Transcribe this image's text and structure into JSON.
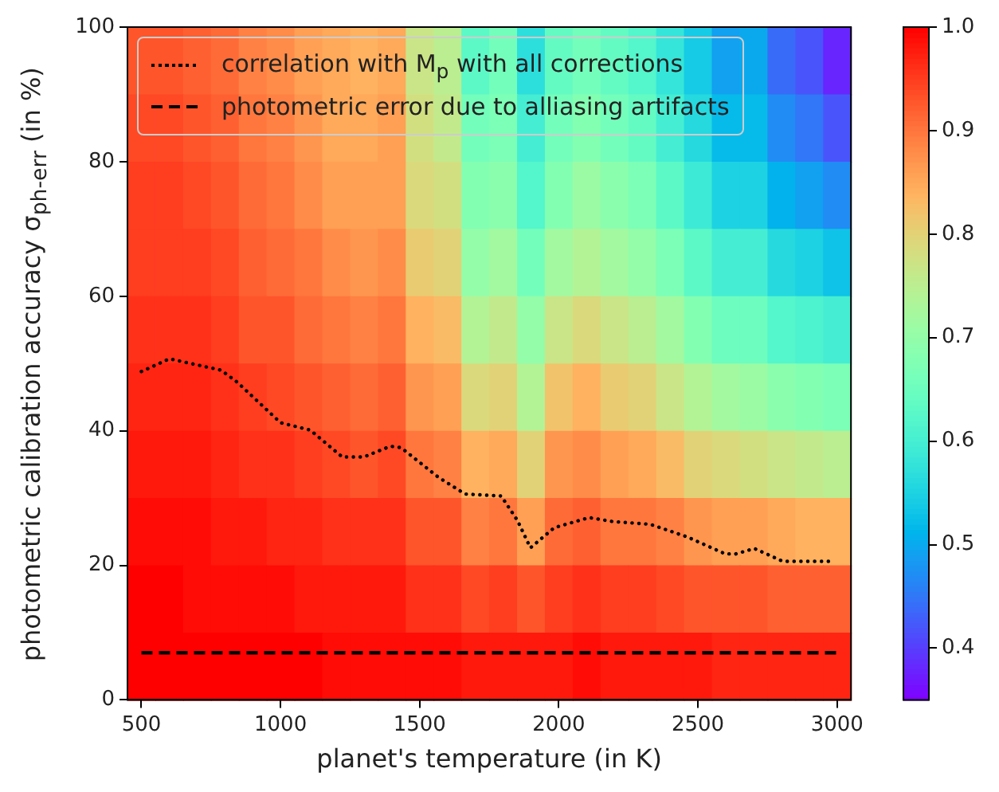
{
  "chart_data": [
    {
      "type": "heatmap",
      "categories": [
        null,
        null,
        null,
        null,
        null,
        null,
        null,
        null,
        null,
        null,
        null,
        null,
        null,
        null,
        null,
        null,
        null,
        null,
        null,
        null,
        null,
        null,
        null,
        null,
        null,
        null
      ],
      "y_categories": [
        null,
        null,
        null,
        null,
        null,
        null,
        null,
        null,
        null,
        null
      ],
      "cells": [
        [
          0.93,
          0.93,
          0.92,
          0.91,
          0.89,
          0.88,
          0.86,
          0.85,
          0.84,
          0.85,
          0.77,
          0.75,
          0.63,
          0.66,
          0.57,
          0.64,
          0.66,
          0.64,
          0.62,
          0.58,
          0.54,
          0.49,
          0.5,
          0.44,
          0.42,
          0.38
        ],
        [
          0.94,
          0.94,
          0.93,
          0.92,
          0.9,
          0.89,
          0.87,
          0.85,
          0.85,
          0.86,
          0.78,
          0.76,
          0.66,
          0.67,
          0.6,
          0.66,
          0.68,
          0.66,
          0.64,
          0.6,
          0.56,
          0.52,
          0.52,
          0.47,
          0.45,
          0.42
        ],
        [
          0.95,
          0.95,
          0.94,
          0.93,
          0.91,
          0.9,
          0.88,
          0.86,
          0.86,
          0.86,
          0.79,
          0.78,
          0.68,
          0.69,
          0.62,
          0.68,
          0.71,
          0.69,
          0.67,
          0.63,
          0.59,
          0.55,
          0.55,
          0.51,
          0.49,
          0.47
        ],
        [
          0.95,
          0.95,
          0.95,
          0.94,
          0.92,
          0.91,
          0.9,
          0.88,
          0.87,
          0.88,
          0.81,
          0.8,
          0.7,
          0.72,
          0.66,
          0.72,
          0.74,
          0.72,
          0.7,
          0.67,
          0.63,
          0.6,
          0.6,
          0.56,
          0.55,
          0.53
        ],
        [
          0.96,
          0.96,
          0.96,
          0.95,
          0.93,
          0.93,
          0.91,
          0.9,
          0.89,
          0.9,
          0.84,
          0.83,
          0.74,
          0.76,
          0.7,
          0.77,
          0.79,
          0.77,
          0.75,
          0.72,
          0.68,
          0.65,
          0.65,
          0.62,
          0.61,
          0.6
        ],
        [
          0.97,
          0.97,
          0.97,
          0.96,
          0.95,
          0.94,
          0.93,
          0.92,
          0.91,
          0.92,
          0.87,
          0.86,
          0.79,
          0.8,
          0.74,
          0.82,
          0.84,
          0.81,
          0.8,
          0.77,
          0.74,
          0.72,
          0.71,
          0.69,
          0.68,
          0.67
        ],
        [
          0.98,
          0.98,
          0.98,
          0.97,
          0.96,
          0.96,
          0.95,
          0.94,
          0.93,
          0.94,
          0.9,
          0.89,
          0.84,
          0.85,
          0.8,
          0.87,
          0.88,
          0.86,
          0.85,
          0.83,
          0.8,
          0.79,
          0.78,
          0.77,
          0.76,
          0.75
        ],
        [
          0.99,
          0.99,
          0.99,
          0.98,
          0.98,
          0.97,
          0.97,
          0.96,
          0.96,
          0.96,
          0.93,
          0.93,
          0.89,
          0.9,
          0.86,
          0.91,
          0.92,
          0.9,
          0.9,
          0.89,
          0.87,
          0.86,
          0.86,
          0.85,
          0.84,
          0.84
        ],
        [
          1.0,
          1.0,
          0.99,
          0.99,
          0.99,
          0.99,
          0.98,
          0.98,
          0.98,
          0.98,
          0.96,
          0.96,
          0.94,
          0.95,
          0.93,
          0.95,
          0.96,
          0.95,
          0.95,
          0.94,
          0.93,
          0.93,
          0.93,
          0.92,
          0.92,
          0.92
        ],
        [
          1.0,
          1.0,
          1.0,
          1.0,
          1.0,
          1.0,
          1.0,
          0.99,
          0.99,
          0.99,
          0.99,
          0.99,
          0.98,
          0.98,
          0.98,
          0.98,
          0.99,
          0.98,
          0.98,
          0.98,
          0.98,
          0.97,
          0.97,
          0.97,
          0.97,
          0.97
        ]
      ],
      "clim": [
        0.35,
        1.0
      ],
      "cticks": [
        0.4,
        0.5,
        0.6,
        0.7,
        0.8,
        0.9,
        {
          "value": 1.0,
          "label": "1.0"
        }
      ]
    },
    {
      "type": "line",
      "xlabel": "planet's temperature (in K)",
      "ylabel": "photometric calibration accuracy σ$_{ph-err}$ (in %)",
      "series": [
        {
          "name": "correlation with M$_{p}$ with all corrections",
          "color": "#000000",
          "line_style": "dotted",
          "x": [
            500,
            601,
            787,
            845,
            1000,
            1107,
            1222,
            1299,
            1395,
            1433,
            1567,
            1663,
            1793,
            1851,
            1898,
            1984,
            2109,
            2195,
            2329,
            2463,
            2598,
            2636,
            2703,
            2805,
            2990
          ],
          "values": [
            48.8,
            50.7,
            49.0,
            47.2,
            41.2,
            40.1,
            36.1,
            36.1,
            37.7,
            37.5,
            33.1,
            30.6,
            30.3,
            26.7,
            22.6,
            25.6,
            27.1,
            26.5,
            26.1,
            24.2,
            21.7,
            21.7,
            22.5,
            20.6,
            20.6
          ]
        },
        {
          "name": "photometric error due to alliasing artifacts",
          "color": "#000000",
          "line_style": "dashed",
          "x": [
            500,
            3000
          ],
          "values": [
            7,
            7
          ]
        }
      ],
      "xlim": [
        450,
        3050
      ],
      "xticks": [
        500,
        1000,
        1500,
        2000,
        2500,
        3000
      ],
      "ylim": [
        0,
        100
      ],
      "yticks": [
        0,
        20,
        40,
        60,
        80,
        100
      ],
      "legend": "top left"
    }
  ]
}
